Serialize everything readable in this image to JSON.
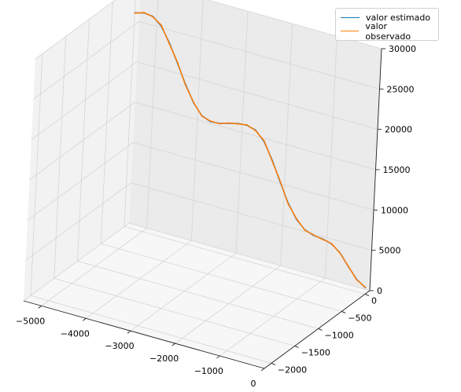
{
  "chart_data": {
    "type": "line",
    "projection": "3d",
    "title": "",
    "xlabel": "",
    "ylabel": "",
    "zlabel": "",
    "xlim": [
      -5400,
      0
    ],
    "ylim": [
      -2150,
      100
    ],
    "zlim": [
      0,
      30000
    ],
    "x_ticks": [
      -5000,
      -4000,
      -3000,
      -2000,
      -1000,
      0
    ],
    "x_tick_labels": [
      "−5000",
      "−4000",
      "−3000",
      "−2000",
      "−1000",
      "0"
    ],
    "y_ticks": [
      0,
      -500,
      -1000,
      -1500,
      -2000
    ],
    "y_tick_labels": [
      "0",
      "−500",
      "−1000",
      "−1500",
      "−2000"
    ],
    "z_ticks": [
      0,
      5000,
      10000,
      15000,
      20000,
      25000,
      30000
    ],
    "z_tick_labels": [
      "0",
      "5000",
      "10000",
      "15000",
      "20000",
      "25000",
      "30000"
    ],
    "grid": true,
    "legend_position": "upper right",
    "series": [
      {
        "name": "valor estimado",
        "color": "#1f77b4",
        "x": [
          -5400,
          -5200,
          -5000,
          -4800,
          -4600,
          -4400,
          -4200,
          -4000,
          -3800,
          -3600,
          -3400,
          -3200,
          -3000,
          -2800,
          -2600,
          -2400,
          -2200,
          -2000,
          -1800,
          -1600,
          -1400,
          -1200,
          -1000,
          -800,
          -600,
          -400,
          -200,
          0
        ],
        "y": [
          0,
          0,
          0,
          0,
          0,
          0,
          0,
          0,
          0,
          0,
          0,
          0,
          0,
          0,
          0,
          0,
          0,
          0,
          0,
          0,
          0,
          0,
          0,
          0,
          0,
          0,
          0,
          0
        ],
        "z": [
          26500,
          26800,
          26700,
          25800,
          24000,
          21800,
          19500,
          17500,
          16200,
          15800,
          15900,
          16200,
          16500,
          16600,
          16300,
          15200,
          13200,
          10800,
          8500,
          6800,
          5800,
          5400,
          5300,
          5000,
          4200,
          2800,
          1500,
          800
        ]
      },
      {
        "name": "valor observado",
        "color": "#ff7f0e",
        "x": [
          -5400,
          -5200,
          -5000,
          -4800,
          -4600,
          -4400,
          -4200,
          -4000,
          -3800,
          -3600,
          -3400,
          -3200,
          -3000,
          -2800,
          -2600,
          -2400,
          -2200,
          -2000,
          -1800,
          -1600,
          -1400,
          -1200,
          -1000,
          -800,
          -600,
          -400,
          -200,
          0
        ],
        "y": [
          0,
          0,
          0,
          0,
          0,
          0,
          0,
          0,
          0,
          0,
          0,
          0,
          0,
          0,
          0,
          0,
          0,
          0,
          0,
          0,
          0,
          0,
          0,
          0,
          0,
          0,
          0,
          0
        ],
        "z": [
          26450,
          26850,
          26650,
          25900,
          23900,
          21900,
          19400,
          17550,
          16150,
          15850,
          15850,
          16250,
          16450,
          16650,
          16250,
          15300,
          13100,
          10900,
          8400,
          6900,
          5750,
          5450,
          5250,
          5050,
          4150,
          2850,
          1450,
          850
        ]
      }
    ]
  }
}
